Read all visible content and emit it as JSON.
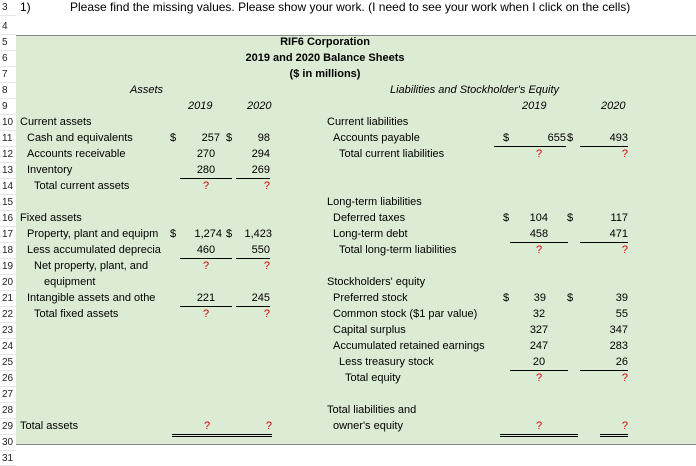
{
  "question": {
    "number": "1)",
    "instruction": "Please find the missing values. Please show your work. (I need to see your work when I click on the cells)"
  },
  "rows": {
    "r3": "3",
    "r4": "4",
    "r5": "5",
    "r6": "6",
    "r7": "7",
    "r8": "8",
    "r9": "9",
    "r10": "10",
    "r11": "11",
    "r12": "12",
    "r13": "13",
    "r14": "14",
    "r15": "15",
    "r16": "16",
    "r17": "17",
    "r18": "18",
    "r19": "19",
    "r20": "20",
    "r21": "21",
    "r22": "22",
    "r23": "23",
    "r24": "24",
    "r25": "25",
    "r26": "26",
    "r27": "27",
    "r28": "28",
    "r29": "29",
    "r30": "30",
    "r31": "31"
  },
  "title": {
    "company": "RIF6 Corporation",
    "report": "2019 and 2020 Balance Sheets",
    "units": "($ in millions)"
  },
  "currency": "$",
  "colors": {
    "panel": "#dcebd4",
    "missing": "#d40000"
  },
  "assets": {
    "header": "Assets",
    "year1": "2019",
    "year2": "2020",
    "rows": [
      {
        "label": "Current assets"
      },
      {
        "label": "Cash and equivalents",
        "v2019": "257",
        "v2020": "98"
      },
      {
        "label": "Accounts receivable",
        "v2019": "270",
        "v2020": "294"
      },
      {
        "label": "Inventory",
        "v2019": "280",
        "v2020": "269"
      },
      {
        "label": "Total current assets",
        "v2019": "?",
        "v2020": "?"
      },
      {
        "label": "Fixed assets"
      },
      {
        "label": "Property, plant and equipm",
        "v2019": "1,274",
        "v2020": "1,423"
      },
      {
        "label": "Less accumulated deprecia",
        "v2019": "460",
        "v2020": "550"
      },
      {
        "label": "Net property, plant, and",
        "v2019": "?",
        "v2020": "?"
      },
      {
        "label": "equipment"
      },
      {
        "label": "Intangible assets and othe",
        "v2019": "221",
        "v2020": "245"
      },
      {
        "label": "Total fixed assets",
        "v2019": "?",
        "v2020": "?"
      },
      {
        "label": "Total assets",
        "v2019": "?",
        "v2020": "?"
      }
    ]
  },
  "liabilities": {
    "header": "Liabilities and Stockholder's Equity",
    "year1": "2019",
    "year2": "2020",
    "rows": [
      {
        "label": "Current liabilities"
      },
      {
        "label": "Accounts payable",
        "v2019": "655",
        "v2020": "493"
      },
      {
        "label": "Total current liabilities",
        "v2019": "?",
        "v2020": "?"
      },
      {
        "label": "Long-term liabilities"
      },
      {
        "label": "Deferred taxes",
        "v2019": "104",
        "v2020": "117"
      },
      {
        "label": "Long-term debt",
        "v2019": "458",
        "v2020": "471"
      },
      {
        "label": "Total long-term liabilities",
        "v2019": "?",
        "v2020": "?"
      },
      {
        "label": "Stockholders' equity"
      },
      {
        "label": "Preferred stock",
        "v2019": "39",
        "v2020": "39"
      },
      {
        "label": "Common stock ($1 par value)",
        "v2019": "32",
        "v2020": "55"
      },
      {
        "label": "Capital surplus",
        "v2019": "327",
        "v2020": "347"
      },
      {
        "label": "Accumulated retained earnings",
        "v2019": "247",
        "v2020": "283"
      },
      {
        "label": "Less treasury stock",
        "v2019": "20",
        "v2020": "26"
      },
      {
        "label": "Total equity",
        "v2019": "?",
        "v2020": "?"
      },
      {
        "label": "Total liabilities and"
      },
      {
        "label": "owner's equity",
        "v2019": "?",
        "v2020": "?"
      }
    ]
  }
}
